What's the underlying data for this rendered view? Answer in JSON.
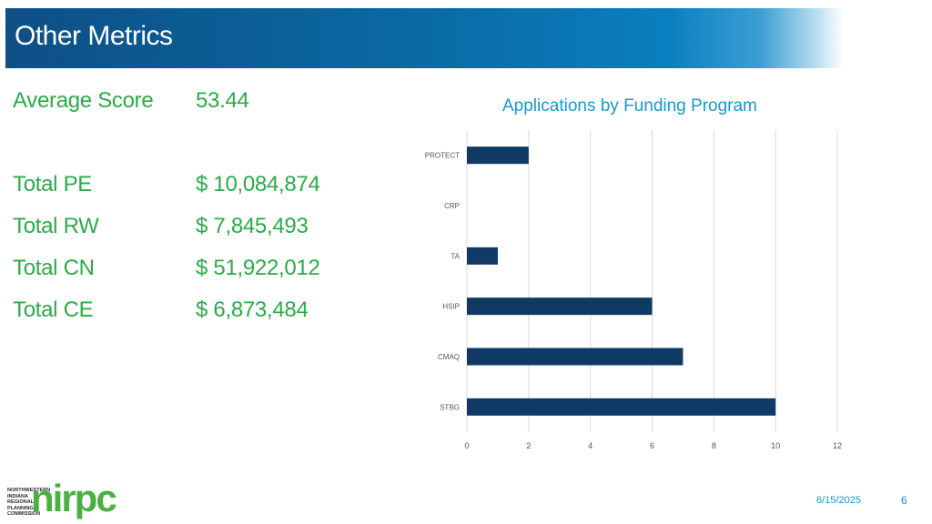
{
  "header": {
    "title": "Other Metrics"
  },
  "metrics": [
    {
      "label": "Average Score",
      "value": "53.44"
    },
    {
      "label": "Total PE",
      "value": "$ 10,084,874"
    },
    {
      "label": "Total RW",
      "value": "$ 7,845,493"
    },
    {
      "label": "Total CN",
      "value": "$ 51,922,012"
    },
    {
      "label": "Total CE",
      "value": "$ 6,873,484"
    }
  ],
  "logo": {
    "small_lines": [
      "NORTHWESTERN",
      "INDIANA",
      "REGIONAL",
      "PLANNING",
      "COMMISSION"
    ],
    "big_text": "nirpc"
  },
  "footer": {
    "date": "6/15/2025",
    "page": "6"
  },
  "colors": {
    "bar": "#0f3a66",
    "title": "#1797d0",
    "metric": "#2bab48",
    "grid": "#d9d9d9"
  },
  "chart_data": {
    "type": "bar",
    "orientation": "horizontal",
    "title": "Applications by Funding Program",
    "categories": [
      "PROTECT",
      "CRP",
      "TA",
      "HSIP",
      "CMAQ",
      "STBG"
    ],
    "values": [
      2,
      0,
      1,
      6,
      7,
      10
    ],
    "xlim": [
      0,
      12
    ],
    "xticks": [
      "0",
      "2",
      "4",
      "6",
      "8",
      "10",
      "12"
    ],
    "grid": true,
    "legend": "none"
  }
}
